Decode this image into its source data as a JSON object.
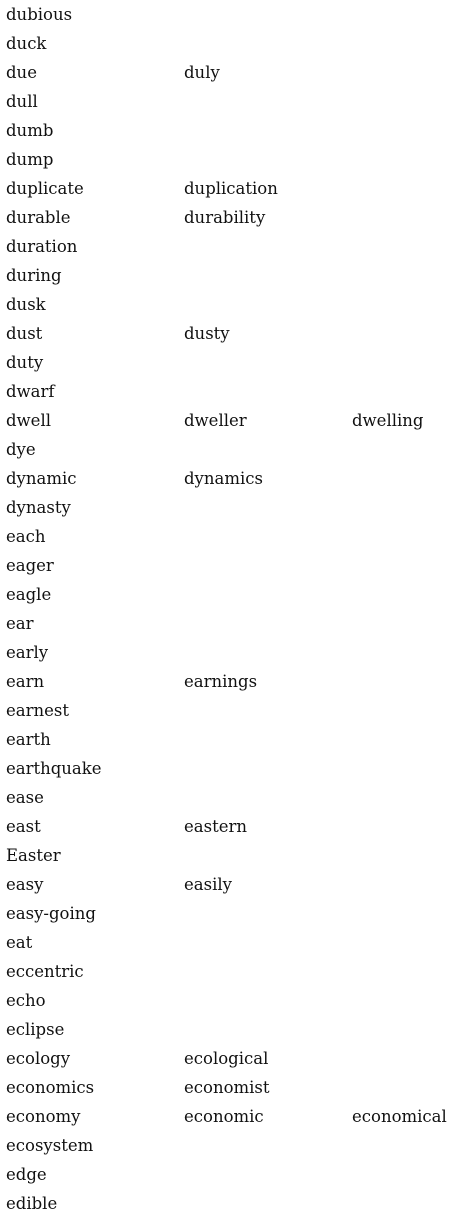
{
  "rows": [
    [
      "dubious"
    ],
    [
      "duck"
    ],
    [
      "due",
      "duly"
    ],
    [
      "dull"
    ],
    [
      "dumb"
    ],
    [
      "dump"
    ],
    [
      "duplicate",
      "duplication"
    ],
    [
      "durable",
      "durability"
    ],
    [
      "duration"
    ],
    [
      "during"
    ],
    [
      "dusk"
    ],
    [
      "dust",
      "dusty"
    ],
    [
      "duty"
    ],
    [
      "dwarf"
    ],
    [
      "dwell",
      "dweller",
      "dwelling"
    ],
    [
      "dye"
    ],
    [
      "dynamic",
      "dynamics"
    ],
    [
      "dynasty"
    ],
    [
      "each"
    ],
    [
      "eager"
    ],
    [
      "eagle"
    ],
    [
      "ear"
    ],
    [
      "early"
    ],
    [
      "earn",
      "earnings"
    ],
    [
      "earnest"
    ],
    [
      "earth"
    ],
    [
      "earthquake"
    ],
    [
      "ease"
    ],
    [
      "east",
      "eastern"
    ],
    [
      "Easter"
    ],
    [
      "easy",
      "easily"
    ],
    [
      "easy-going"
    ],
    [
      "eat"
    ],
    [
      "eccentric"
    ],
    [
      "echo"
    ],
    [
      "eclipse"
    ],
    [
      "ecology",
      "ecological"
    ],
    [
      "economics",
      "economist"
    ],
    [
      "economy",
      "economic",
      "economical"
    ],
    [
      "ecosystem"
    ],
    [
      "edge"
    ],
    [
      "edible"
    ]
  ]
}
